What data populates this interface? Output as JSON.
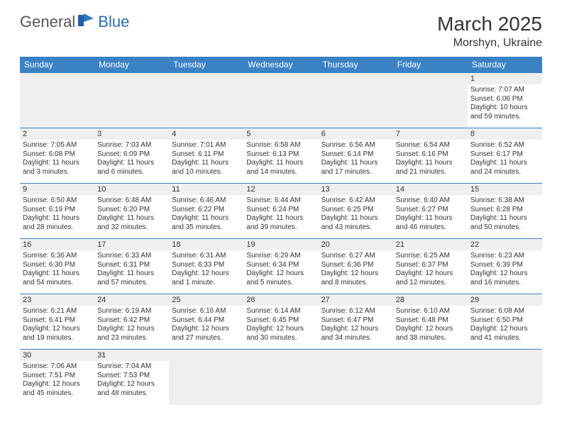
{
  "brand": {
    "part1": "General",
    "part2": "Blue"
  },
  "title": "March 2025",
  "location": "Morshyn, Ukraine",
  "colors": {
    "header_bg": "#3a82c4",
    "header_text": "#ffffff",
    "border": "#3a82c4",
    "daynum_bg": "#efefef",
    "text": "#333333"
  },
  "weekdays": [
    "Sunday",
    "Monday",
    "Tuesday",
    "Wednesday",
    "Thursday",
    "Friday",
    "Saturday"
  ],
  "weeks": [
    [
      null,
      null,
      null,
      null,
      null,
      null,
      {
        "n": "1",
        "sunrise": "Sunrise: 7:07 AM",
        "sunset": "Sunset: 6:06 PM",
        "daylight": "Daylight: 10 hours and 59 minutes."
      }
    ],
    [
      {
        "n": "2",
        "sunrise": "Sunrise: 7:05 AM",
        "sunset": "Sunset: 6:08 PM",
        "daylight": "Daylight: 11 hours and 3 minutes."
      },
      {
        "n": "3",
        "sunrise": "Sunrise: 7:03 AM",
        "sunset": "Sunset: 6:09 PM",
        "daylight": "Daylight: 11 hours and 6 minutes."
      },
      {
        "n": "4",
        "sunrise": "Sunrise: 7:01 AM",
        "sunset": "Sunset: 6:11 PM",
        "daylight": "Daylight: 11 hours and 10 minutes."
      },
      {
        "n": "5",
        "sunrise": "Sunrise: 6:58 AM",
        "sunset": "Sunset: 6:13 PM",
        "daylight": "Daylight: 11 hours and 14 minutes."
      },
      {
        "n": "6",
        "sunrise": "Sunrise: 6:56 AM",
        "sunset": "Sunset: 6:14 PM",
        "daylight": "Daylight: 11 hours and 17 minutes."
      },
      {
        "n": "7",
        "sunrise": "Sunrise: 6:54 AM",
        "sunset": "Sunset: 6:16 PM",
        "daylight": "Daylight: 11 hours and 21 minutes."
      },
      {
        "n": "8",
        "sunrise": "Sunrise: 6:52 AM",
        "sunset": "Sunset: 6:17 PM",
        "daylight": "Daylight: 11 hours and 24 minutes."
      }
    ],
    [
      {
        "n": "9",
        "sunrise": "Sunrise: 6:50 AM",
        "sunset": "Sunset: 6:19 PM",
        "daylight": "Daylight: 11 hours and 28 minutes."
      },
      {
        "n": "10",
        "sunrise": "Sunrise: 6:48 AM",
        "sunset": "Sunset: 6:20 PM",
        "daylight": "Daylight: 11 hours and 32 minutes."
      },
      {
        "n": "11",
        "sunrise": "Sunrise: 6:46 AM",
        "sunset": "Sunset: 6:22 PM",
        "daylight": "Daylight: 11 hours and 35 minutes."
      },
      {
        "n": "12",
        "sunrise": "Sunrise: 6:44 AM",
        "sunset": "Sunset: 6:24 PM",
        "daylight": "Daylight: 11 hours and 39 minutes."
      },
      {
        "n": "13",
        "sunrise": "Sunrise: 6:42 AM",
        "sunset": "Sunset: 6:25 PM",
        "daylight": "Daylight: 11 hours and 43 minutes."
      },
      {
        "n": "14",
        "sunrise": "Sunrise: 6:40 AM",
        "sunset": "Sunset: 6:27 PM",
        "daylight": "Daylight: 11 hours and 46 minutes."
      },
      {
        "n": "15",
        "sunrise": "Sunrise: 6:38 AM",
        "sunset": "Sunset: 6:28 PM",
        "daylight": "Daylight: 11 hours and 50 minutes."
      }
    ],
    [
      {
        "n": "16",
        "sunrise": "Sunrise: 6:36 AM",
        "sunset": "Sunset: 6:30 PM",
        "daylight": "Daylight: 11 hours and 54 minutes."
      },
      {
        "n": "17",
        "sunrise": "Sunrise: 6:33 AM",
        "sunset": "Sunset: 6:31 PM",
        "daylight": "Daylight: 11 hours and 57 minutes."
      },
      {
        "n": "18",
        "sunrise": "Sunrise: 6:31 AM",
        "sunset": "Sunset: 6:33 PM",
        "daylight": "Daylight: 12 hours and 1 minute."
      },
      {
        "n": "19",
        "sunrise": "Sunrise: 6:29 AM",
        "sunset": "Sunset: 6:34 PM",
        "daylight": "Daylight: 12 hours and 5 minutes."
      },
      {
        "n": "20",
        "sunrise": "Sunrise: 6:27 AM",
        "sunset": "Sunset: 6:36 PM",
        "daylight": "Daylight: 12 hours and 8 minutes."
      },
      {
        "n": "21",
        "sunrise": "Sunrise: 6:25 AM",
        "sunset": "Sunset: 6:37 PM",
        "daylight": "Daylight: 12 hours and 12 minutes."
      },
      {
        "n": "22",
        "sunrise": "Sunrise: 6:23 AM",
        "sunset": "Sunset: 6:39 PM",
        "daylight": "Daylight: 12 hours and 16 minutes."
      }
    ],
    [
      {
        "n": "23",
        "sunrise": "Sunrise: 6:21 AM",
        "sunset": "Sunset: 6:41 PM",
        "daylight": "Daylight: 12 hours and 19 minutes."
      },
      {
        "n": "24",
        "sunrise": "Sunrise: 6:19 AM",
        "sunset": "Sunset: 6:42 PM",
        "daylight": "Daylight: 12 hours and 23 minutes."
      },
      {
        "n": "25",
        "sunrise": "Sunrise: 6:16 AM",
        "sunset": "Sunset: 6:44 PM",
        "daylight": "Daylight: 12 hours and 27 minutes."
      },
      {
        "n": "26",
        "sunrise": "Sunrise: 6:14 AM",
        "sunset": "Sunset: 6:45 PM",
        "daylight": "Daylight: 12 hours and 30 minutes."
      },
      {
        "n": "27",
        "sunrise": "Sunrise: 6:12 AM",
        "sunset": "Sunset: 6:47 PM",
        "daylight": "Daylight: 12 hours and 34 minutes."
      },
      {
        "n": "28",
        "sunrise": "Sunrise: 6:10 AM",
        "sunset": "Sunset: 6:48 PM",
        "daylight": "Daylight: 12 hours and 38 minutes."
      },
      {
        "n": "29",
        "sunrise": "Sunrise: 6:08 AM",
        "sunset": "Sunset: 6:50 PM",
        "daylight": "Daylight: 12 hours and 41 minutes."
      }
    ],
    [
      {
        "n": "30",
        "sunrise": "Sunrise: 7:06 AM",
        "sunset": "Sunset: 7:51 PM",
        "daylight": "Daylight: 12 hours and 45 minutes."
      },
      {
        "n": "31",
        "sunrise": "Sunrise: 7:04 AM",
        "sunset": "Sunset: 7:53 PM",
        "daylight": "Daylight: 12 hours and 48 minutes."
      },
      null,
      null,
      null,
      null,
      null
    ]
  ]
}
